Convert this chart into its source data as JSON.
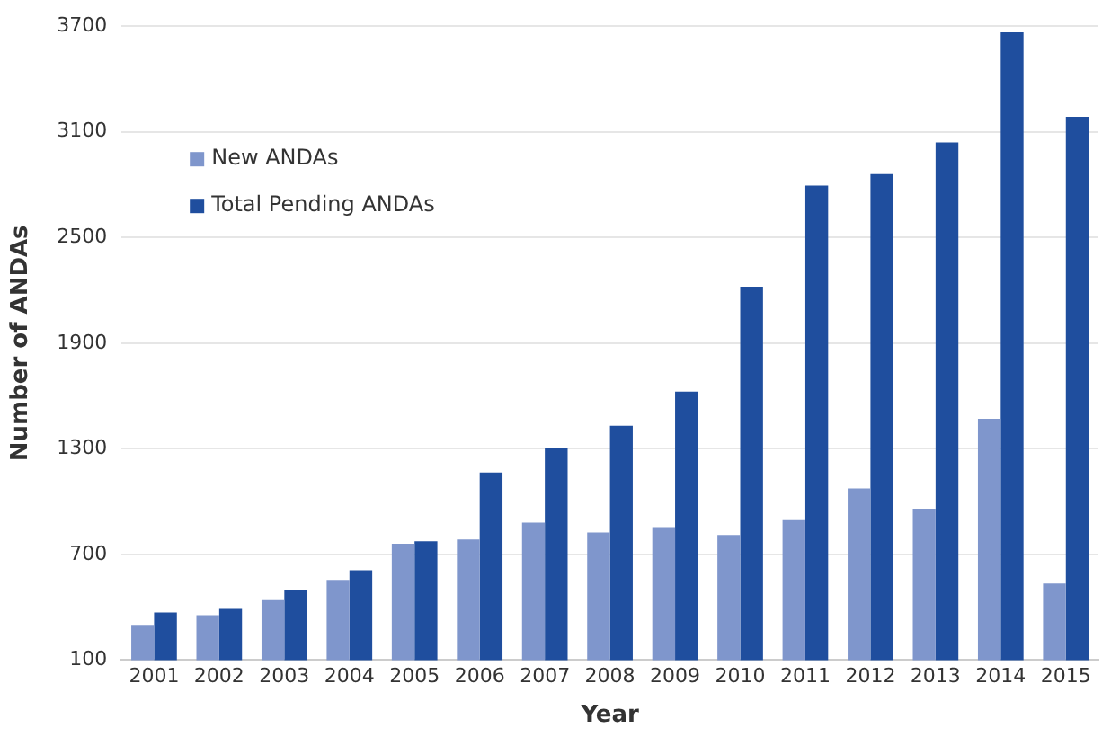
{
  "chart_data": {
    "type": "bar",
    "xlabel": "Year",
    "ylabel": "Number of ANDAs",
    "categories": [
      "2001",
      "2002",
      "2003",
      "2004",
      "2005",
      "2006",
      "2007",
      "2008",
      "2009",
      "2010",
      "2011",
      "2012",
      "2013",
      "2014",
      "2015"
    ],
    "series": [
      {
        "name": "New ANDAs",
        "color": "#7f96cc",
        "values": [
          300,
          355,
          440,
          555,
          760,
          785,
          880,
          825,
          855,
          810,
          895,
          1075,
          960,
          1470,
          535
        ]
      },
      {
        "name": "Total Pending ANDAs",
        "color": "#1f4e9e",
        "values": [
          370,
          390,
          500,
          610,
          775,
          1165,
          1305,
          1430,
          1625,
          2220,
          2795,
          2860,
          3040,
          3665,
          3185
        ]
      }
    ],
    "ylim": [
      100,
      3700
    ],
    "yticks": [
      100,
      700,
      1300,
      1900,
      2500,
      3100,
      3700
    ],
    "grid": "y",
    "legend": "top left"
  }
}
